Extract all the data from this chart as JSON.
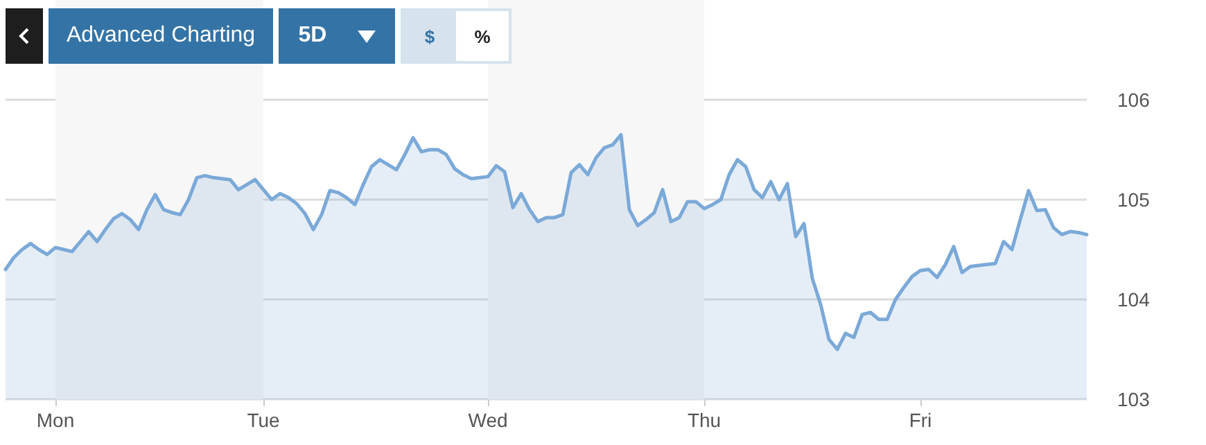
{
  "chart_data": {
    "type": "area",
    "annotations": [
      "Advanced Charting",
      "5D",
      "$",
      "%"
    ],
    "categories": [
      null,
      null,
      null,
      null,
      null,
      null,
      "Mon",
      null,
      null,
      null,
      null,
      null,
      null,
      null,
      null,
      null,
      null,
      null,
      null,
      null,
      null,
      null,
      null,
      null,
      null,
      null,
      null,
      null,
      null,
      null,
      null,
      "Tue",
      null,
      null,
      null,
      null,
      null,
      null,
      null,
      null,
      null,
      null,
      null,
      null,
      null,
      null,
      null,
      null,
      null,
      null,
      null,
      null,
      null,
      null,
      null,
      null,
      null,
      null,
      "Wed",
      null,
      null,
      null,
      null,
      null,
      null,
      null,
      null,
      null,
      null,
      null,
      null,
      null,
      null,
      null,
      null,
      null,
      null,
      null,
      null,
      null,
      null,
      null,
      null,
      null,
      "Thu",
      null,
      null,
      null,
      null,
      null,
      null,
      null,
      null,
      null,
      null,
      null,
      null,
      null,
      null,
      null,
      null,
      null,
      null,
      null,
      null,
      null,
      null,
      null,
      null,
      null,
      "Fri",
      null,
      null,
      null,
      null,
      null,
      null,
      null,
      null,
      null,
      null,
      null,
      null,
      null,
      null,
      null,
      null,
      null,
      null,
      null,
      null
    ],
    "series": [
      {
        "color": "#7ba9d8",
        "values": [
          104.3,
          104.42,
          104.5,
          104.56,
          104.5,
          104.45,
          104.52,
          104.5,
          104.48,
          104.58,
          104.68,
          104.58,
          104.7,
          104.81,
          104.86,
          104.8,
          104.7,
          104.9,
          105.05,
          104.9,
          104.87,
          104.85,
          105.0,
          105.22,
          105.24,
          105.22,
          105.21,
          105.2,
          105.1,
          105.15,
          105.2,
          105.1,
          105.0,
          105.06,
          105.02,
          104.96,
          104.86,
          104.7,
          104.85,
          105.09,
          105.07,
          105.02,
          104.95,
          105.15,
          105.33,
          105.4,
          105.35,
          105.3,
          105.45,
          105.62,
          105.48,
          105.5,
          105.5,
          105.45,
          105.31,
          105.25,
          105.21,
          105.22,
          105.23,
          105.34,
          105.28,
          104.92,
          105.06,
          104.9,
          104.78,
          104.82,
          104.82,
          104.85,
          105.27,
          105.35,
          105.25,
          105.42,
          105.52,
          105.55,
          105.65,
          104.9,
          104.74,
          104.8,
          104.87,
          105.1,
          104.78,
          104.82,
          104.98,
          104.98,
          104.91,
          104.95,
          105.0,
          105.25,
          105.4,
          105.33,
          105.1,
          105.02,
          105.18,
          105.0,
          105.16,
          104.63,
          104.76,
          104.21,
          103.95,
          103.6,
          103.5,
          103.66,
          103.62,
          103.85,
          103.87,
          103.8,
          103.8,
          104.0,
          104.12,
          104.23,
          104.29,
          104.3,
          104.22,
          104.35,
          104.53,
          104.27,
          104.33,
          104.34,
          104.35,
          104.36,
          104.58,
          104.5,
          104.8,
          105.09,
          104.89,
          104.9,
          104.72,
          104.65,
          104.68,
          104.67,
          104.65
        ]
      }
    ],
    "ylim": [
      103,
      107
    ],
    "yticks": [
      103,
      104,
      105,
      106
    ],
    "bands": [
      {
        "axis": "x",
        "from": "Mon",
        "to": "Tue",
        "color": "#f7f7f7"
      },
      {
        "axis": "x",
        "from": "Wed",
        "to": "Thu",
        "color": "#f7f7f7"
      }
    ],
    "grid": "y",
    "marker": "none",
    "line_style": "solid"
  }
}
